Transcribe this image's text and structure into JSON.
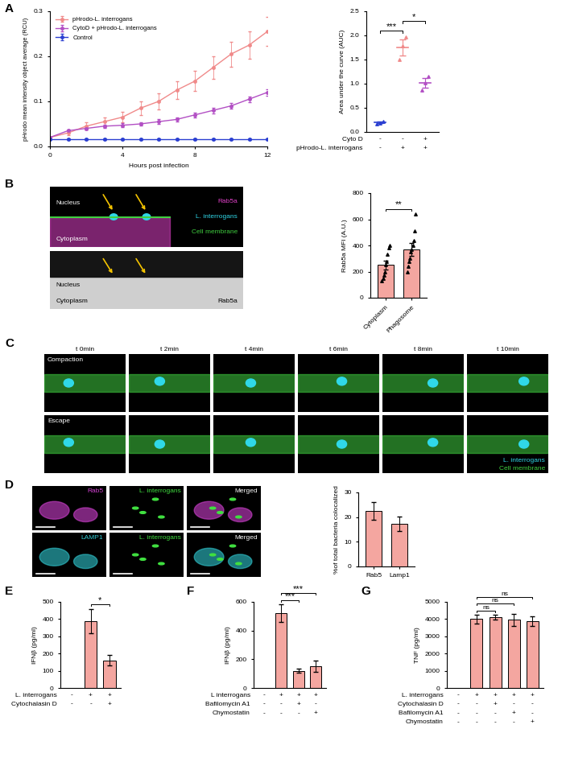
{
  "chart_data": [
    {
      "panel": "A",
      "type": "line",
      "x": [
        0,
        1,
        2,
        3,
        4,
        5,
        6,
        7,
        8,
        9,
        10,
        11,
        12
      ],
      "xlabel": "Hours post infection",
      "ylabel": "pHrodo mean intensity object average (RCU)",
      "xlim": [
        0,
        12
      ],
      "xticks": [
        0,
        4,
        8,
        12
      ],
      "ylim": [
        0,
        0.3
      ],
      "yticks": [
        {
          "value": 0,
          "label": "0.0"
        },
        0.1,
        0.2,
        0.3
      ],
      "legend": "upper left",
      "series": [
        {
          "name": "pHrodo-L. interrogans",
          "color": "#f08a8a",
          "marker": "o",
          "values": [
            0.02,
            0.03,
            0.045,
            0.055,
            0.065,
            0.085,
            0.1,
            0.125,
            0.145,
            0.175,
            0.205,
            0.225,
            0.255
          ],
          "errors": [
            0.002,
            0.005,
            0.008,
            0.01,
            0.012,
            0.015,
            0.018,
            0.02,
            0.022,
            0.025,
            0.028,
            0.03,
            0.032
          ]
        },
        {
          "name": "CytoD + pHrodo-L. interrogans",
          "color": "#b24fc4",
          "marker": "o",
          "values": [
            0.02,
            0.035,
            0.04,
            0.045,
            0.047,
            0.05,
            0.055,
            0.06,
            0.07,
            0.08,
            0.09,
            0.105,
            0.12
          ],
          "errors": [
            0.002,
            0.003,
            0.003,
            0.004,
            0.004,
            0.004,
            0.005,
            0.005,
            0.005,
            0.006,
            0.006,
            0.006,
            0.007
          ]
        },
        {
          "name": "Control",
          "color": "#2b3fd1",
          "marker": "o",
          "values": [
            0.016,
            0.016,
            0.016,
            0.016,
            0.016,
            0.016,
            0.016,
            0.016,
            0.016,
            0.016,
            0.016,
            0.016,
            0.016
          ],
          "errors": [
            0.001,
            0.001,
            0.001,
            0.001,
            0.001,
            0.001,
            0.001,
            0.001,
            0.001,
            0.001,
            0.001,
            0.001,
            0.001
          ]
        }
      ]
    },
    {
      "type": "dot",
      "categories": [
        null,
        null,
        null
      ],
      "values": [
        0.2,
        1.75,
        1.02
      ],
      "errors": [
        0.02,
        0.16,
        0.1
      ],
      "points": [
        [
          0.17,
          0.19,
          0.21
        ],
        [
          1.5,
          1.78,
          1.97
        ],
        [
          0.86,
          1.02,
          1.15
        ]
      ],
      "colors": [
        "#2b3fd1",
        "#f08a8a",
        "#b24fc4"
      ],
      "marker": "^",
      "ylabel": "Area under the curve (AUC)",
      "ylim": [
        0,
        2.5
      ],
      "yticks": [
        {
          "value": 0,
          "label": "0.0"
        },
        0.5,
        {
          "value": 1,
          "label": "1.0"
        },
        1.5,
        {
          "value": 2,
          "label": "2.0"
        },
        2.5
      ],
      "conditions": [
        {
          "name": "Cyto D",
          "values": [
            "-",
            "-",
            "+"
          ]
        },
        {
          "name": "pHrodo-L. interrogans",
          "values": [
            "-",
            "+",
            "+"
          ]
        }
      ],
      "significance": [
        {
          "from": 0,
          "to": 1,
          "label": "***"
        },
        {
          "from": 1,
          "to": 2,
          "label": "*"
        }
      ]
    },
    {
      "type": "bar",
      "categories": [
        "Cytoplasm",
        "Phagosome"
      ],
      "values": [
        250,
        370
      ],
      "errors": [
        35,
        50
      ],
      "points": [
        [
          130,
          150,
          170,
          200,
          250,
          280,
          330,
          380,
          400
        ],
        [
          200,
          240,
          280,
          300,
          350,
          370,
          400,
          440,
          510,
          640
        ]
      ],
      "color": "#f4a6a0",
      "marker": "^",
      "ylabel": "Rab5a MFI (A.U.)",
      "ylim": [
        0,
        800
      ],
      "yticks": [
        0,
        200,
        400,
        600,
        800
      ],
      "significance": [
        {
          "from": 0,
          "to": 1,
          "label": "**"
        }
      ]
    },
    {
      "type": "bar",
      "categories": [
        "Rab5",
        "Lamp1"
      ],
      "values": [
        22.5,
        17.3
      ],
      "errors": [
        3.5,
        2.8
      ],
      "color": "#f4a6a0",
      "ylabel": "%of total bacteria colocalized",
      "ylim": [
        0,
        30
      ],
      "yticks": [
        0,
        10,
        20,
        30
      ]
    },
    {
      "panel": "E",
      "type": "bar",
      "categories": [
        null,
        null,
        null
      ],
      "values": [
        0,
        390,
        160
      ],
      "errors": [
        0,
        70,
        30
      ],
      "color": "#f4a6a0",
      "ylabel": "IFNβ (pg/ml)",
      "ylim": [
        0,
        500
      ],
      "yticks": [
        0,
        100,
        200,
        300,
        400,
        500
      ],
      "conditions": [
        {
          "name": "L. interrogans",
          "values": [
            "-",
            "+",
            "+"
          ]
        },
        {
          "name": "Cytochalasin D",
          "values": [
            "-",
            "-",
            "+"
          ]
        }
      ],
      "significance": [
        {
          "from": 1,
          "to": 2,
          "label": "*"
        }
      ]
    },
    {
      "panel": "F",
      "type": "bar",
      "categories": [
        null,
        null,
        null,
        null
      ],
      "values": [
        0,
        520,
        120,
        150
      ],
      "errors": [
        0,
        62,
        12,
        40
      ],
      "color": "#f4a6a0",
      "ylabel": "IFNβ (pg/ml)",
      "ylim": [
        0,
        600
      ],
      "yticks": [
        0,
        200,
        400,
        600
      ],
      "conditions": [
        {
          "name": "L interrogans",
          "values": [
            "-",
            "+",
            "+",
            "+"
          ]
        },
        {
          "name": "Bafilomycin A1",
          "values": [
            "-",
            "-",
            "+",
            "-"
          ]
        },
        {
          "name": "Chymostatin",
          "values": [
            "-",
            "-",
            "-",
            "+"
          ]
        }
      ],
      "significance": [
        {
          "from": 1,
          "to": 2,
          "label": "***"
        },
        {
          "from": 1,
          "to": 3,
          "label": "***"
        }
      ]
    },
    {
      "panel": "G",
      "type": "bar",
      "categories": [
        null,
        null,
        null,
        null,
        null
      ],
      "values": [
        0,
        4000,
        4100,
        3950,
        3870
      ],
      "errors": [
        0,
        250,
        150,
        350,
        280
      ],
      "color": "#f4a6a0",
      "ylabel": "TNF (pg/ml)",
      "ylim": [
        0,
        5000
      ],
      "yticks": [
        0,
        1000,
        2000,
        3000,
        4000,
        5000
      ],
      "conditions": [
        {
          "name": "L. interrogans",
          "values": [
            "-",
            "+",
            "+",
            "+",
            "+"
          ]
        },
        {
          "name": "Cytochalasin D",
          "values": [
            "-",
            "-",
            "+",
            "-",
            "-"
          ]
        },
        {
          "name": "Bafilomycin A1",
          "values": [
            "-",
            "-",
            "-",
            "+",
            "-"
          ]
        },
        {
          "name": "Chymostatin",
          "values": [
            "-",
            "-",
            "-",
            "-",
            "+"
          ]
        }
      ],
      "significance": [
        {
          "from": 1,
          "to": 2,
          "label": "ns"
        },
        {
          "from": 1,
          "to": 3,
          "label": "ns"
        },
        {
          "from": 1,
          "to": 4,
          "label": "ns"
        }
      ]
    }
  ],
  "images": [
    {
      "panel": "B",
      "top": {
        "texts": [
          "Nucleus",
          "Cytoplasm"
        ],
        "legend": [
          {
            "name": "Rab5a",
            "color": "#e040c8"
          },
          {
            "name": "L. interrogans",
            "color": "#30d8e8"
          },
          {
            "name": "Cell membrane",
            "color": "#40d040"
          }
        ]
      },
      "bottom": {
        "texts": [
          "Nucleus",
          "Cytoplasm"
        ],
        "label": "Rab5a"
      }
    },
    {
      "panel": "C",
      "columns": [
        "t 0min",
        "t 2min",
        "t 4min",
        "t 6min",
        "t 8min",
        "t 10min"
      ],
      "rows": [
        "Compaction",
        "Escape"
      ],
      "legend": [
        {
          "name": "L. interrogans",
          "color": "#30d8e8"
        },
        {
          "name": "Cell membrane",
          "color": "#40d040"
        }
      ]
    },
    {
      "panel": "D",
      "rows": [
        [
          {
            "name": "Rab5",
            "color": "#d040d0"
          },
          {
            "name": "L. interrogans",
            "color": "#40e040"
          },
          {
            "name": "Merged",
            "color": "#ffffff"
          }
        ],
        [
          {
            "name": "LAMP1",
            "color": "#30c8d0"
          },
          {
            "name": "L. interrogans",
            "color": "#40e040"
          },
          {
            "name": "Merged",
            "color": "#ffffff"
          }
        ]
      ]
    }
  ]
}
